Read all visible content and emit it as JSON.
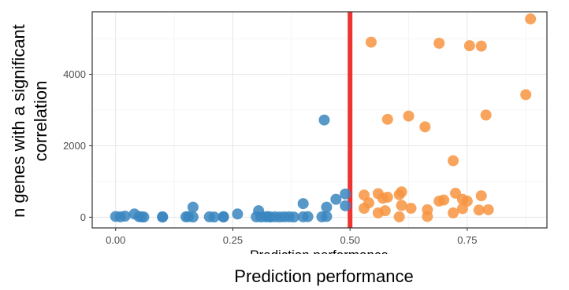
{
  "chart_data": {
    "type": "scatter",
    "xlabel": "Prediction performance",
    "ylabel_lines": [
      "n genes with a significant",
      "correlation"
    ],
    "clipped_text": "Prediction performance",
    "x_ticks": [
      "0.00",
      "0.25",
      "0.50",
      "0.75"
    ],
    "y_ticks": [
      "0",
      "2000",
      "4000"
    ],
    "xlim": [
      -0.05,
      0.92
    ],
    "ylim": [
      -300,
      5750
    ],
    "x_tick_values": [
      0,
      0.25,
      0.5,
      0.75
    ],
    "y_tick_values": [
      0,
      2000,
      4000
    ],
    "grid": true,
    "threshold": {
      "x": 0.5,
      "color": "#ee3333"
    },
    "series": [
      {
        "color": "#3a86c0",
        "points": [
          [
            0.0,
            20
          ],
          [
            0.01,
            10
          ],
          [
            0.02,
            30
          ],
          [
            0.04,
            90
          ],
          [
            0.05,
            15
          ],
          [
            0.055,
            10
          ],
          [
            0.06,
            5
          ],
          [
            0.1,
            10
          ],
          [
            0.1,
            5
          ],
          [
            0.15,
            10
          ],
          [
            0.155,
            15
          ],
          [
            0.165,
            280
          ],
          [
            0.165,
            5
          ],
          [
            0.2,
            10
          ],
          [
            0.21,
            5
          ],
          [
            0.23,
            15
          ],
          [
            0.23,
            5
          ],
          [
            0.26,
            90
          ],
          [
            0.3,
            10
          ],
          [
            0.305,
            180
          ],
          [
            0.31,
            5
          ],
          [
            0.32,
            10
          ],
          [
            0.325,
            15
          ],
          [
            0.33,
            5
          ],
          [
            0.34,
            10
          ],
          [
            0.35,
            5
          ],
          [
            0.36,
            10
          ],
          [
            0.37,
            10
          ],
          [
            0.38,
            5
          ],
          [
            0.4,
            380
          ],
          [
            0.4,
            10
          ],
          [
            0.41,
            15
          ],
          [
            0.44,
            10
          ],
          [
            0.45,
            20
          ],
          [
            0.45,
            280
          ],
          [
            0.445,
            2720
          ],
          [
            0.47,
            500
          ],
          [
            0.49,
            650
          ],
          [
            0.49,
            320
          ]
        ]
      },
      {
        "color": "#f7943f",
        "points": [
          [
            0.53,
            620
          ],
          [
            0.53,
            250
          ],
          [
            0.54,
            400
          ],
          [
            0.545,
            4900
          ],
          [
            0.56,
            660
          ],
          [
            0.56,
            120
          ],
          [
            0.57,
            530
          ],
          [
            0.575,
            180
          ],
          [
            0.58,
            2740
          ],
          [
            0.58,
            560
          ],
          [
            0.605,
            630
          ],
          [
            0.605,
            10
          ],
          [
            0.61,
            710
          ],
          [
            0.61,
            330
          ],
          [
            0.625,
            2830
          ],
          [
            0.63,
            250
          ],
          [
            0.66,
            2530
          ],
          [
            0.665,
            210
          ],
          [
            0.665,
            20
          ],
          [
            0.69,
            4870
          ],
          [
            0.69,
            450
          ],
          [
            0.7,
            480
          ],
          [
            0.72,
            1580
          ],
          [
            0.72,
            120
          ],
          [
            0.725,
            670
          ],
          [
            0.74,
            500
          ],
          [
            0.74,
            240
          ],
          [
            0.75,
            450
          ],
          [
            0.755,
            4800
          ],
          [
            0.775,
            200
          ],
          [
            0.78,
            600
          ],
          [
            0.78,
            4790
          ],
          [
            0.79,
            2860
          ],
          [
            0.795,
            210
          ],
          [
            0.875,
            3430
          ],
          [
            0.885,
            5550
          ]
        ]
      }
    ]
  }
}
